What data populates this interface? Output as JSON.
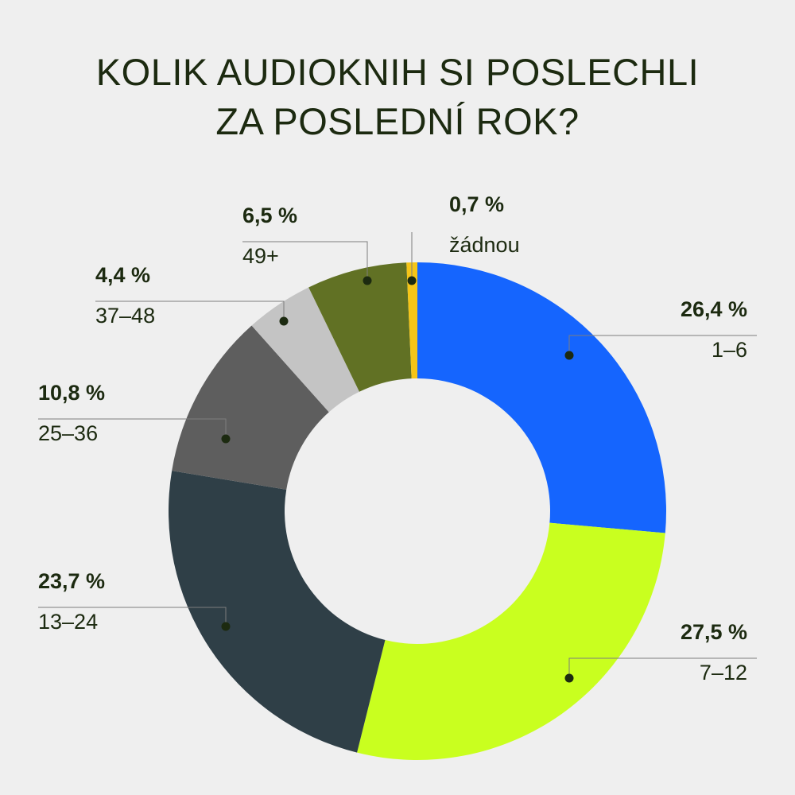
{
  "title": {
    "line1": "KOLIK AUDIOKNIH SI POSLECHLI",
    "line2": "ZA POSLEDNÍ ROK?"
  },
  "colors": {
    "background": "#efefef",
    "text": "#1c2a10",
    "leader": "#7d7d7d"
  },
  "chart_data": {
    "type": "pie",
    "title": "KOLIK AUDIOKNIH SI POSLECHLI ZA POSLEDNÍ ROK?",
    "donut": true,
    "slices": [
      {
        "label": "1–6",
        "value": 26.4,
        "value_text": "26,4 %",
        "color": "#1565fe"
      },
      {
        "label": "7–12",
        "value": 27.5,
        "value_text": "27,5 %",
        "color": "#c9ff1f"
      },
      {
        "label": "13–24",
        "value": 23.7,
        "value_text": "23,7 %",
        "color": "#2f3f47"
      },
      {
        "label": "25–36",
        "value": 10.8,
        "value_text": "10,8 %",
        "color": "#5e5e5e"
      },
      {
        "label": "37–48",
        "value": 4.4,
        "value_text": "4,4 %",
        "color": "#c4c4c4"
      },
      {
        "label": "49+",
        "value": 6.5,
        "value_text": "6,5 %",
        "color": "#617124"
      },
      {
        "label": "žádnou",
        "value": 0.7,
        "value_text": "0,7 %",
        "color": "#f5c518"
      }
    ]
  }
}
